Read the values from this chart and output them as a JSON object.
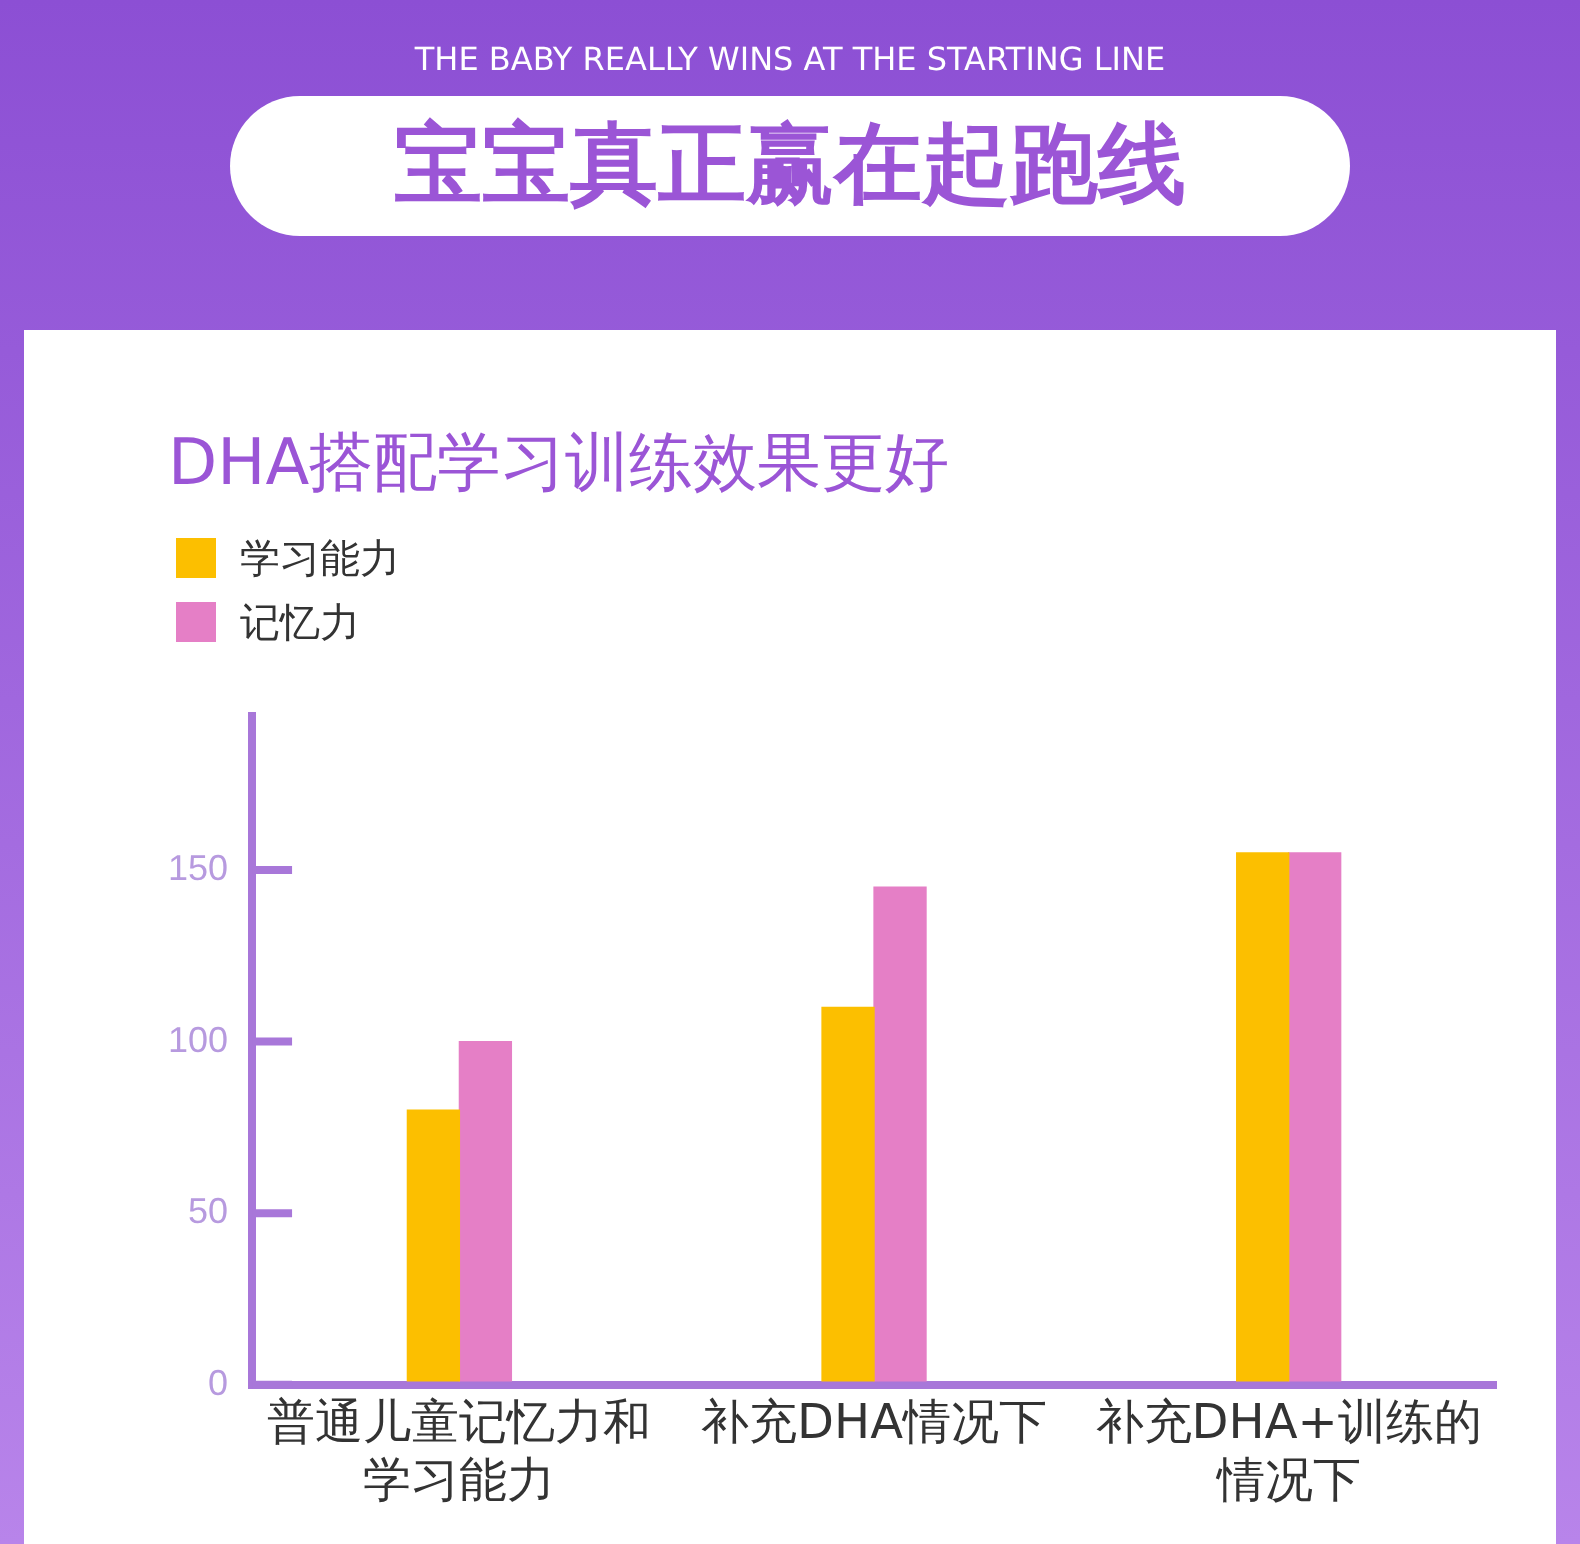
{
  "chart_data": {
    "type": "bar",
    "title": "DHA搭配学习训练效果更好",
    "annotations": [
      "THE BABY REALLY WINS AT THE STARTING LINE",
      "宝宝真正赢在起跑线"
    ],
    "categories": [
      "普通儿童记忆力和学习能力",
      "补充DHA情况下",
      "补充DHA+训练的情况下"
    ],
    "series": [
      {
        "name": "学习能力",
        "color": "#fcbf00",
        "values": [
          80,
          110,
          155
        ]
      },
      {
        "name": "记忆力",
        "color": "#e57fc6",
        "values": [
          100,
          145,
          155
        ]
      }
    ],
    "ylim": [
      0,
      195
    ],
    "yticks": [
      0,
      50,
      100,
      150
    ],
    "grid": false,
    "legend": "top left"
  }
}
